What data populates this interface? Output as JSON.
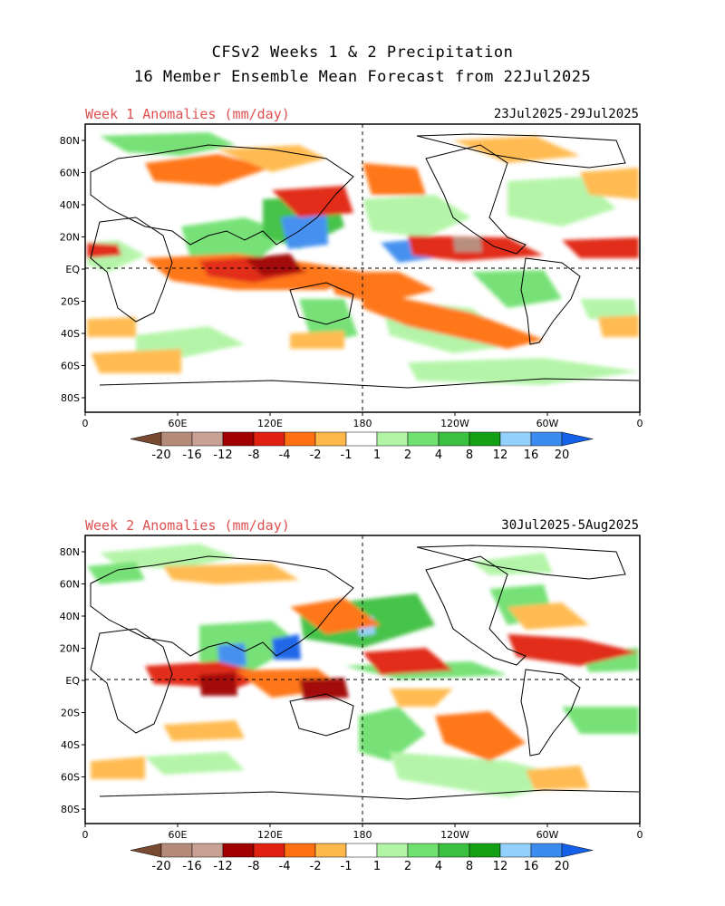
{
  "header": {
    "title_line1": "CFSv2 Weeks 1 & 2 Precipitation",
    "title_line2": "16 Member Ensemble Mean Forecast from 22Jul2025"
  },
  "panels": [
    {
      "label": "Week 1 Anomalies (mm/day)",
      "dates": "23Jul2025-29Jul2025"
    },
    {
      "label": "Week 2 Anomalies (mm/day)",
      "dates": "30Jul2025-5Aug2025"
    }
  ],
  "axes": {
    "lat_ticks": [
      "80N",
      "60N",
      "40N",
      "20N",
      "EQ",
      "20S",
      "40S",
      "60S",
      "80S"
    ],
    "lon_ticks": [
      "0",
      "60E",
      "120E",
      "180",
      "120W",
      "60W",
      "0"
    ]
  },
  "colorbar": {
    "labels": [
      "-20",
      "-16",
      "-12",
      "-8",
      "-4",
      "-2",
      "-1",
      "1",
      "2",
      "4",
      "8",
      "12",
      "16",
      "20"
    ],
    "colors": [
      "#784a32",
      "#b48a78",
      "#c8a094",
      "#a00000",
      "#e02010",
      "#ff7010",
      "#ffb84a",
      "#ffffff",
      "#b0f4a4",
      "#70e070",
      "#3cc040",
      "#14a014",
      "#94d0fc",
      "#3c8cf0",
      "#1460e8"
    ]
  }
}
